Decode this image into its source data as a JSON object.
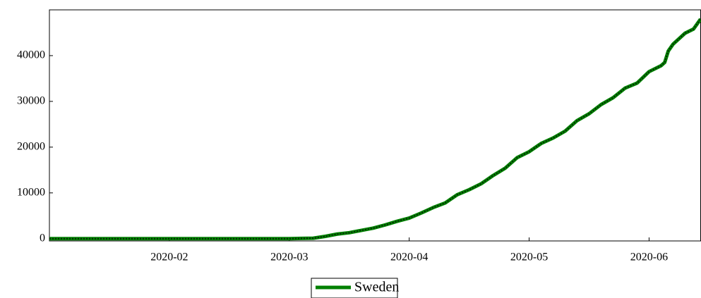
{
  "chart_data": {
    "type": "line",
    "x": [
      1.0,
      1.5,
      2.0,
      2.5,
      3.0,
      3.1,
      3.2,
      3.3,
      3.4,
      3.5,
      3.6,
      3.7,
      3.8,
      3.9,
      4.0,
      4.1,
      4.2,
      4.3,
      4.4,
      4.5,
      4.6,
      4.7,
      4.8,
      4.9,
      5.0,
      5.1,
      5.2,
      5.3,
      5.4,
      5.5,
      5.6,
      5.7,
      5.8,
      5.9,
      6.0,
      6.1,
      6.13,
      6.16,
      6.2,
      6.3,
      6.37,
      6.43
    ],
    "series": [
      {
        "name": "Sweden",
        "color": "#008000",
        "values": [
          0,
          0,
          0,
          0,
          0,
          50,
          100,
          500,
          1000,
          1300,
          1800,
          2300,
          3000,
          3800,
          4500,
          5600,
          6800,
          7800,
          9600,
          10700,
          12000,
          13800,
          15400,
          17700,
          19000,
          20800,
          22000,
          23500,
          25800,
          27300,
          29300,
          30800,
          32900,
          34000,
          36500,
          37800,
          38500,
          41000,
          42500,
          44900,
          45800,
          48000
        ]
      }
    ],
    "xlim": [
      1.0,
      6.43
    ],
    "xticks": [
      {
        "value": 2,
        "label": "2020-02"
      },
      {
        "value": 3,
        "label": "2020-03"
      },
      {
        "value": 4,
        "label": "2020-04"
      },
      {
        "value": 5,
        "label": "2020-05"
      },
      {
        "value": 6,
        "label": "2020-06"
      }
    ],
    "ylim": [
      -500,
      50000
    ],
    "yticks": [
      0,
      10000,
      20000,
      30000,
      40000
    ],
    "legend": "bottom"
  }
}
